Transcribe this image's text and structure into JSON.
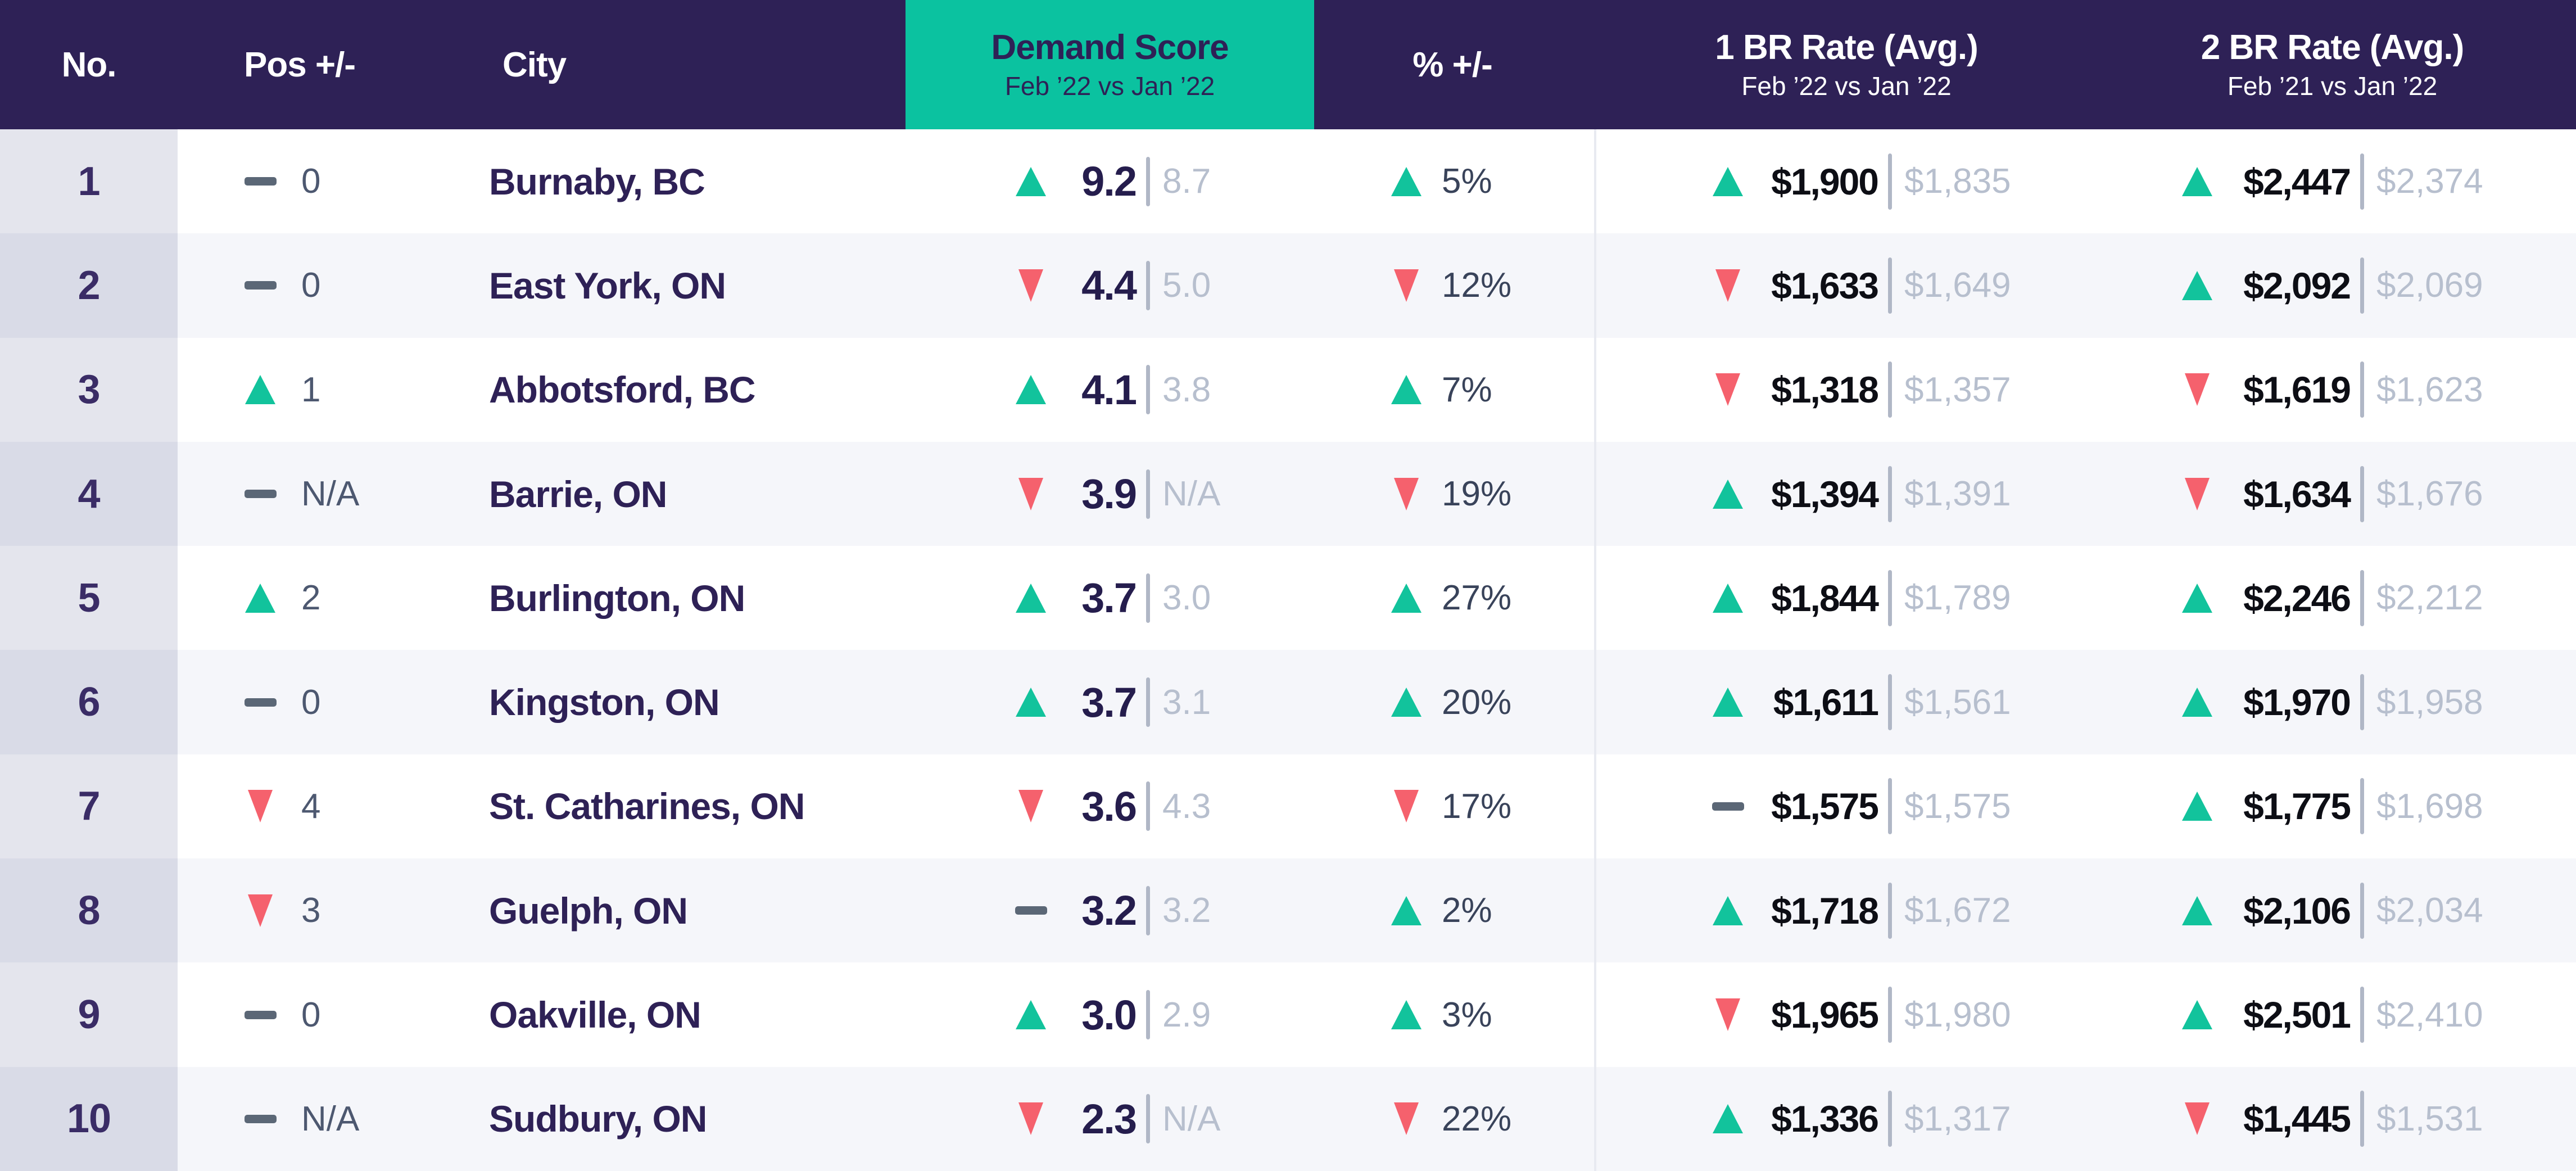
{
  "header": {
    "no": "No.",
    "pos": "Pos +/-",
    "city": "City",
    "demand": {
      "title": "Demand Score",
      "subtitle": "Feb ’22 vs Jan ’22"
    },
    "pct": "% +/-",
    "br1": {
      "title": "1 BR Rate (Avg.)",
      "subtitle": "Feb ’22 vs Jan ’22"
    },
    "br2": {
      "title": "2 BR Rate (Avg.)",
      "subtitle": "Feb ’21 vs Jan ’22"
    }
  },
  "chart_data": {
    "type": "table",
    "title": "Demand Score ranking, Feb ’22 vs Jan ’22",
    "columns": [
      "No.",
      "Pos +/-",
      "City",
      "Demand Score (Feb ’22 vs Jan ’22)",
      "% +/-",
      "1 BR Rate (Avg.) Feb ’22 vs Jan ’22",
      "2 BR Rate (Avg.) Feb ’21 vs Jan ’22"
    ],
    "rows": [
      {
        "no": "1",
        "pos_dir": "none",
        "pos": "0",
        "city": "Burnaby, BC",
        "score_dir": "up",
        "score": "9.2",
        "score_prev": "8.7",
        "pct_dir": "up",
        "pct": "5%",
        "br1_dir": "up",
        "br1": "$1,900",
        "br1_prev": "$1,835",
        "br2_dir": "up",
        "br2": "$2,447",
        "br2_prev": "$2,374"
      },
      {
        "no": "2",
        "pos_dir": "none",
        "pos": "0",
        "city": "East York, ON",
        "score_dir": "down",
        "score": "4.4",
        "score_prev": "5.0",
        "pct_dir": "down",
        "pct": "12%",
        "br1_dir": "down",
        "br1": "$1,633",
        "br1_prev": "$1,649",
        "br2_dir": "up",
        "br2": "$2,092",
        "br2_prev": "$2,069"
      },
      {
        "no": "3",
        "pos_dir": "up",
        "pos": "1",
        "city": "Abbotsford, BC",
        "score_dir": "up",
        "score": "4.1",
        "score_prev": "3.8",
        "pct_dir": "up",
        "pct": "7%",
        "br1_dir": "down",
        "br1": "$1,318",
        "br1_prev": "$1,357",
        "br2_dir": "down",
        "br2": "$1,619",
        "br2_prev": "$1,623"
      },
      {
        "no": "4",
        "pos_dir": "none",
        "pos": "N/A",
        "city": "Barrie, ON",
        "score_dir": "down",
        "score": "3.9",
        "score_prev": "N/A",
        "pct_dir": "down",
        "pct": "19%",
        "br1_dir": "up",
        "br1": "$1,394",
        "br1_prev": "$1,391",
        "br2_dir": "down",
        "br2": "$1,634",
        "br2_prev": "$1,676"
      },
      {
        "no": "5",
        "pos_dir": "up",
        "pos": "2",
        "city": "Burlington, ON",
        "score_dir": "up",
        "score": "3.7",
        "score_prev": "3.0",
        "pct_dir": "up",
        "pct": "27%",
        "br1_dir": "up",
        "br1": "$1,844",
        "br1_prev": "$1,789",
        "br2_dir": "up",
        "br2": "$2,246",
        "br2_prev": "$2,212"
      },
      {
        "no": "6",
        "pos_dir": "none",
        "pos": "0",
        "city": "Kingston, ON",
        "score_dir": "up",
        "score": "3.7",
        "score_prev": "3.1",
        "pct_dir": "up",
        "pct": "20%",
        "br1_dir": "up",
        "br1": "$1,611",
        "br1_prev": "$1,561",
        "br2_dir": "up",
        "br2": "$1,970",
        "br2_prev": "$1,958"
      },
      {
        "no": "7",
        "pos_dir": "down",
        "pos": "4",
        "city": "St. Catharines, ON",
        "score_dir": "down",
        "score": "3.6",
        "score_prev": "4.3",
        "pct_dir": "down",
        "pct": "17%",
        "br1_dir": "none",
        "br1": "$1,575",
        "br1_prev": "$1,575",
        "br2_dir": "up",
        "br2": "$1,775",
        "br2_prev": "$1,698"
      },
      {
        "no": "8",
        "pos_dir": "down",
        "pos": "3",
        "city": "Guelph, ON",
        "score_dir": "none",
        "score": "3.2",
        "score_prev": "3.2",
        "pct_dir": "up",
        "pct": "2%",
        "br1_dir": "up",
        "br1": "$1,718",
        "br1_prev": "$1,672",
        "br2_dir": "up",
        "br2": "$2,106",
        "br2_prev": "$2,034"
      },
      {
        "no": "9",
        "pos_dir": "none",
        "pos": "0",
        "city": "Oakville, ON",
        "score_dir": "up",
        "score": "3.0",
        "score_prev": "2.9",
        "pct_dir": "up",
        "pct": "3%",
        "br1_dir": "down",
        "br1": "$1,965",
        "br1_prev": "$1,980",
        "br2_dir": "up",
        "br2": "$2,501",
        "br2_prev": "$2,410"
      },
      {
        "no": "10",
        "pos_dir": "none",
        "pos": "N/A",
        "city": "Sudbury, ON",
        "score_dir": "down",
        "score": "2.3",
        "score_prev": "N/A",
        "pct_dir": "down",
        "pct": "22%",
        "br1_dir": "up",
        "br1": "$1,336",
        "br1_prev": "$1,317",
        "br2_dir": "down",
        "br2": "$1,445",
        "br2_prev": "$1,531"
      }
    ]
  },
  "colors": {
    "header_bg": "#2e2156",
    "demand_header_bg": "#0bc2a0",
    "up_arrow": "#12c39c",
    "down_arrow": "#f5616d",
    "no_change_dash": "#5b6776",
    "previous_value_text": "#b7bfce",
    "alt_row_bg": "#f5f6fa"
  }
}
